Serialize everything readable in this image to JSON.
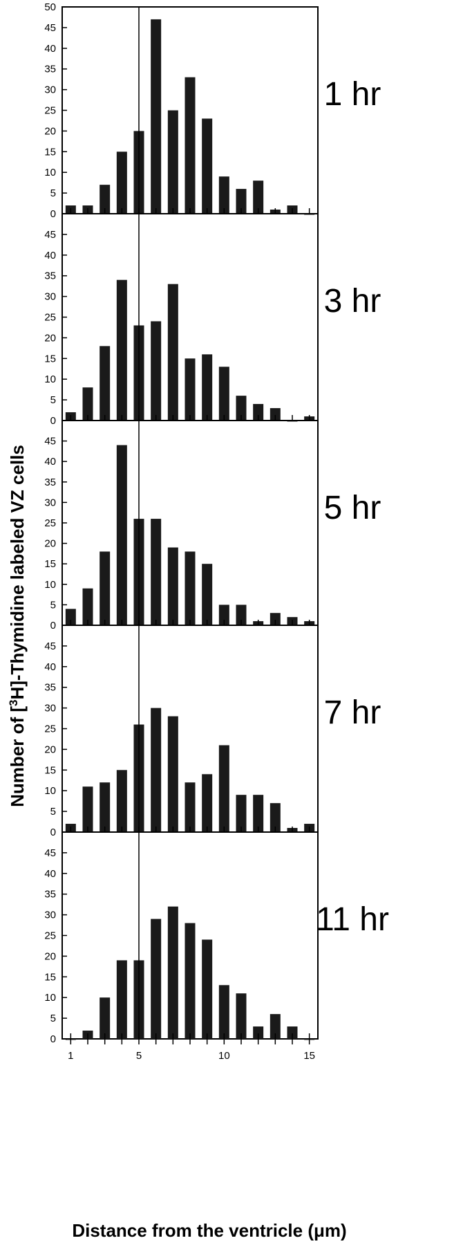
{
  "chart_data": {
    "type": "bar",
    "layout": "vertical stack of 5 panels sharing x axis",
    "ylabel_prefix": "Number of [",
    "ylabel_sup": "3",
    "ylabel_suffix": "H]-Thymidine labeled VZ cells",
    "xlabel": "Distance from the ventricle (μm)",
    "xlim": [
      0.5,
      15.5
    ],
    "x_ticks": [
      1,
      5,
      10,
      15
    ],
    "x_tick_labels": [
      "1",
      "5",
      "10",
      "15"
    ],
    "reference_line_x": 5,
    "panels": [
      {
        "label": "1 hr",
        "ylim": [
          0,
          50
        ],
        "y_ticks": [
          0,
          5,
          10,
          15,
          20,
          25,
          30,
          35,
          40,
          45,
          50
        ],
        "y_tick_labels": [
          "0",
          "5",
          "10",
          "15",
          "20",
          "25",
          "30",
          "35",
          "40",
          "45",
          "50"
        ],
        "x": [
          1,
          2,
          3,
          4,
          5,
          6,
          7,
          8,
          9,
          10,
          11,
          12,
          13,
          14,
          15
        ],
        "values": [
          2,
          2,
          7,
          15,
          20,
          47,
          25,
          33,
          23,
          9,
          6,
          8,
          1,
          2,
          0
        ]
      },
      {
        "label": "3 hr",
        "ylim": [
          0,
          50
        ],
        "y_ticks": [
          0,
          5,
          10,
          15,
          20,
          25,
          30,
          35,
          40,
          45
        ],
        "y_tick_labels": [
          "0",
          "5",
          "10",
          "15",
          "20",
          "25",
          "30",
          "35",
          "40",
          "45"
        ],
        "x": [
          1,
          2,
          3,
          4,
          5,
          6,
          7,
          8,
          9,
          10,
          11,
          12,
          13,
          14,
          15
        ],
        "values": [
          2,
          8,
          18,
          34,
          23,
          24,
          33,
          15,
          16,
          13,
          6,
          4,
          3,
          0,
          1
        ]
      },
      {
        "label": "5 hr",
        "ylim": [
          0,
          50
        ],
        "y_ticks": [
          0,
          5,
          10,
          15,
          20,
          25,
          30,
          35,
          40,
          45
        ],
        "y_tick_labels": [
          "0",
          "5",
          "10",
          "15",
          "20",
          "25",
          "30",
          "35",
          "40",
          "45"
        ],
        "x": [
          1,
          2,
          3,
          4,
          5,
          6,
          7,
          8,
          9,
          10,
          11,
          12,
          13,
          14,
          15
        ],
        "values": [
          4,
          9,
          18,
          44,
          26,
          26,
          19,
          18,
          15,
          5,
          5,
          1,
          3,
          2,
          1
        ]
      },
      {
        "label": "7 hr",
        "ylim": [
          0,
          50
        ],
        "y_ticks": [
          0,
          5,
          10,
          15,
          20,
          25,
          30,
          35,
          40,
          45
        ],
        "y_tick_labels": [
          "0",
          "5",
          "10",
          "15",
          "20",
          "25",
          "30",
          "35",
          "40",
          "45"
        ],
        "x": [
          1,
          2,
          3,
          4,
          5,
          6,
          7,
          8,
          9,
          10,
          11,
          12,
          13,
          14,
          15
        ],
        "values": [
          2,
          11,
          12,
          15,
          26,
          30,
          28,
          12,
          14,
          21,
          9,
          9,
          7,
          1,
          2
        ]
      },
      {
        "label": "11 hr",
        "ylim": [
          0,
          50
        ],
        "y_ticks": [
          0,
          5,
          10,
          15,
          20,
          25,
          30,
          35,
          40,
          45
        ],
        "y_tick_labels": [
          "0",
          "5",
          "10",
          "15",
          "20",
          "25",
          "30",
          "35",
          "40",
          "45"
        ],
        "x": [
          1,
          2,
          3,
          4,
          5,
          6,
          7,
          8,
          9,
          10,
          11,
          12,
          13,
          14,
          15
        ],
        "values": [
          0,
          2,
          10,
          19,
          19,
          29,
          32,
          28,
          24,
          13,
          11,
          3,
          6,
          3,
          0
        ]
      }
    ],
    "bar_color": "#1a1a1a",
    "axis_color": "#000000",
    "background": "#ffffff",
    "grid": false,
    "legend": "none"
  }
}
